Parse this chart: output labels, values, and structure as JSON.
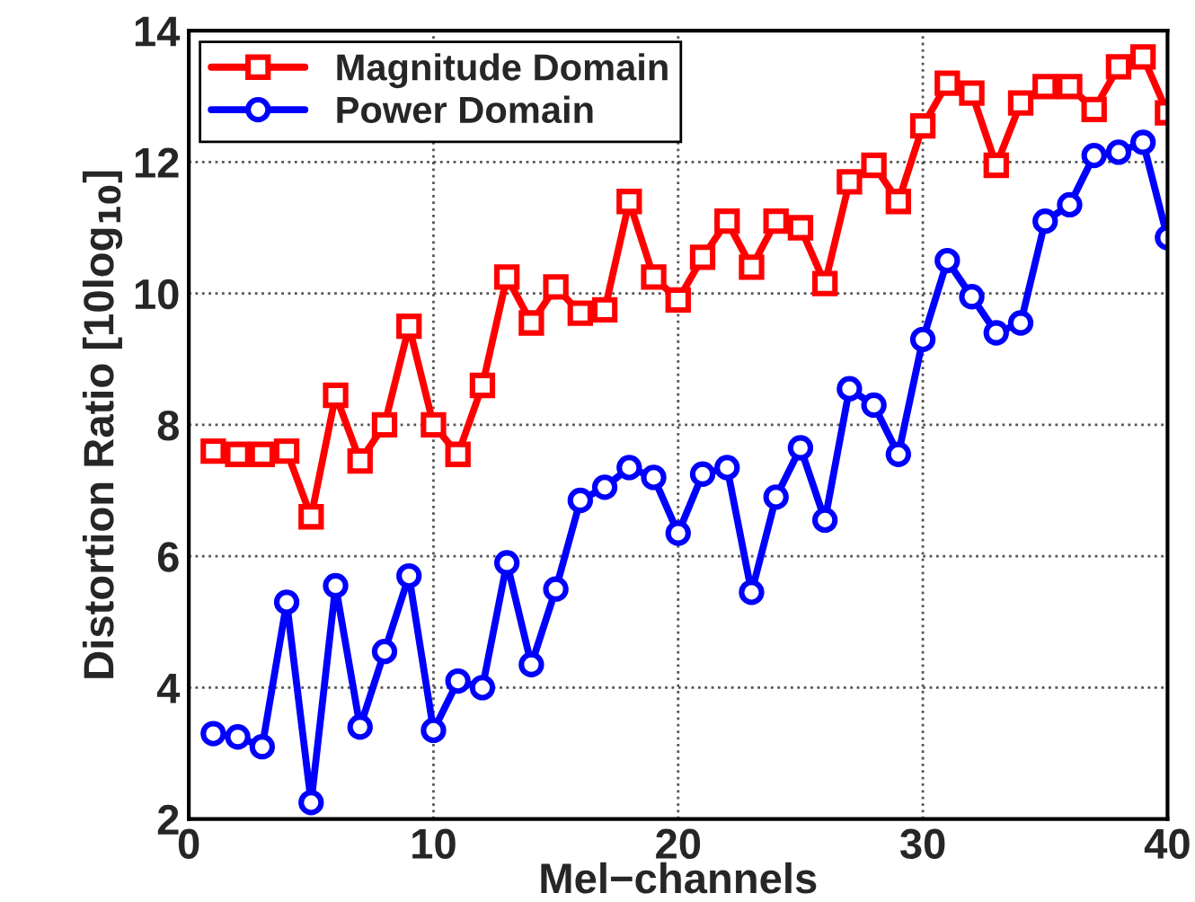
{
  "chart_data": {
    "type": "line",
    "xlabel": "Mel−channels",
    "ylabel": "Distortion Ratio [10log$_{10}$]",
    "x": [
      1,
      2,
      3,
      4,
      5,
      6,
      7,
      8,
      9,
      10,
      11,
      12,
      13,
      14,
      15,
      16,
      17,
      18,
      19,
      20,
      21,
      22,
      23,
      24,
      25,
      26,
      27,
      28,
      29,
      30,
      31,
      32,
      33,
      34,
      35,
      36,
      37,
      38,
      39,
      40
    ],
    "series": [
      {
        "name": "Magnitude Domain",
        "color": "#ff0000",
        "marker": "square",
        "values": [
          7.6,
          7.55,
          7.55,
          7.6,
          6.6,
          8.45,
          7.45,
          8.0,
          9.5,
          8.0,
          7.55,
          8.6,
          10.25,
          9.55,
          10.1,
          9.7,
          9.75,
          11.4,
          10.25,
          9.9,
          10.55,
          11.1,
          10.4,
          11.1,
          11.0,
          10.15,
          11.7,
          11.95,
          11.4,
          12.55,
          13.2,
          13.05,
          11.95,
          12.9,
          13.15,
          13.15,
          12.8,
          13.45,
          13.6,
          12.75
        ]
      },
      {
        "name": "Power Domain",
        "color": "#0000ff",
        "marker": "circle",
        "values": [
          3.3,
          3.25,
          3.1,
          5.3,
          2.25,
          5.55,
          3.4,
          4.55,
          5.7,
          3.35,
          4.1,
          4.0,
          5.9,
          4.35,
          5.5,
          6.85,
          7.05,
          7.35,
          7.2,
          6.35,
          7.25,
          7.35,
          5.45,
          6.9,
          7.65,
          6.55,
          8.55,
          8.3,
          7.55,
          9.3,
          10.5,
          9.95,
          9.4,
          9.55,
          11.1,
          11.35,
          12.1,
          12.15,
          12.3,
          10.85
        ]
      }
    ],
    "xlim": [
      0,
      40
    ],
    "xticks": [
      0,
      10,
      20,
      30,
      40
    ],
    "ylim": [
      2,
      14
    ],
    "yticks": [
      2,
      4,
      6,
      8,
      10,
      12,
      14
    ],
    "grid": true,
    "legend": "top left",
    "line_style": "solid"
  }
}
